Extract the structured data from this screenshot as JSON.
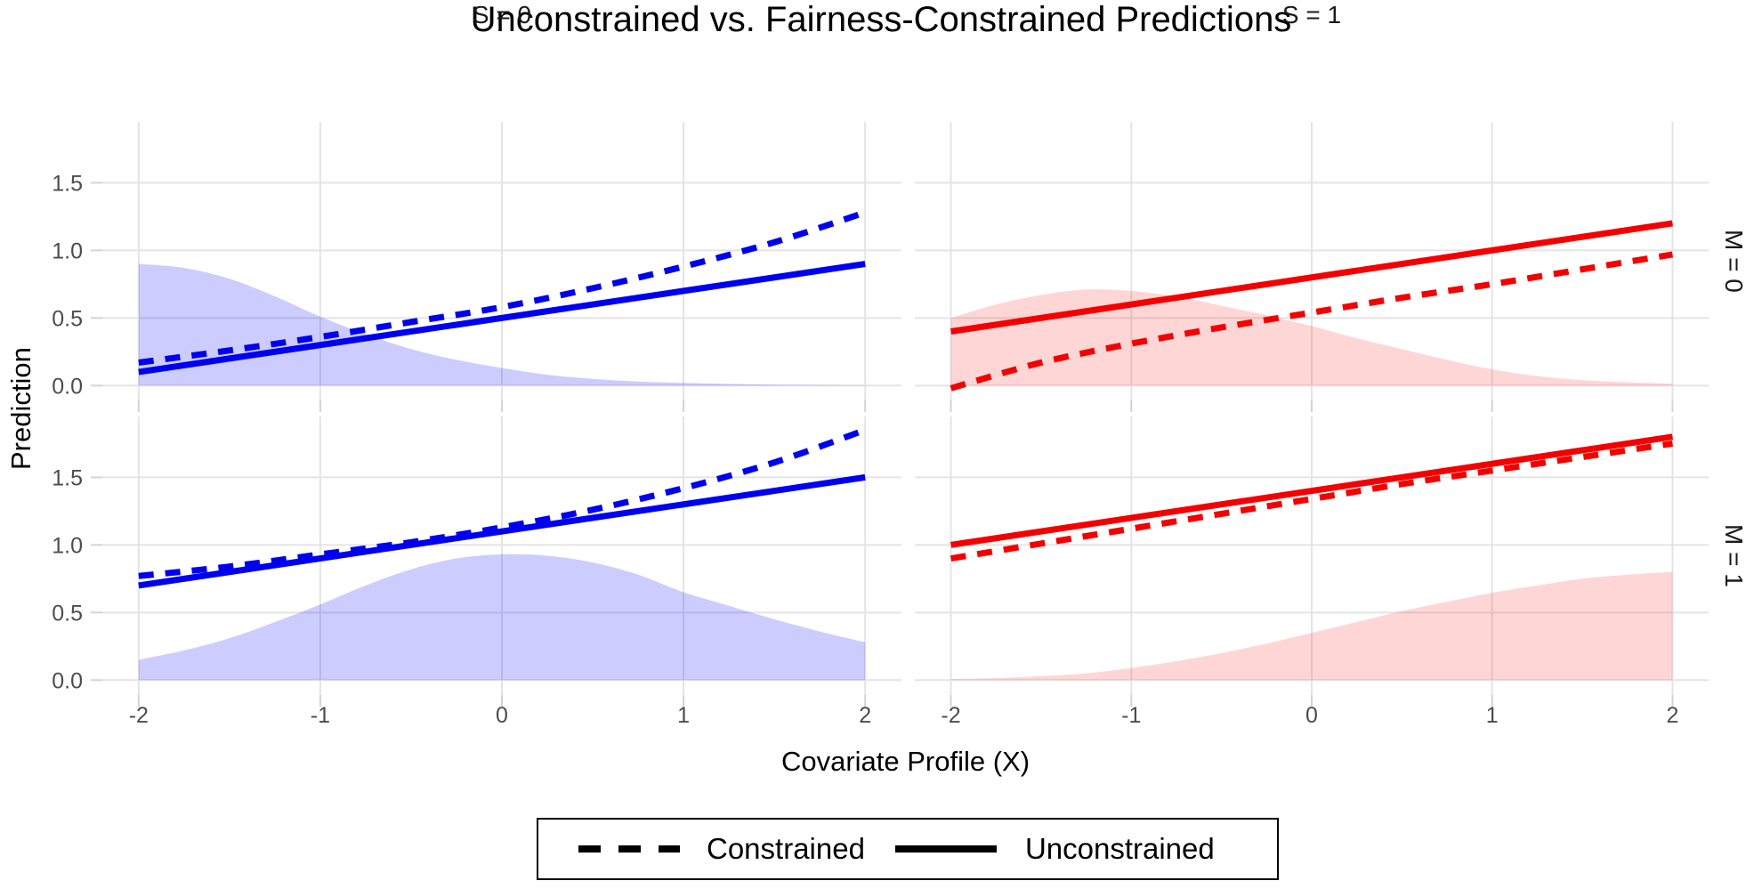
{
  "chart_data": {
    "type": "line",
    "title": "Unconstrained vs. Fairness-Constrained Predictions",
    "xlabel": "Covariate Profile (X)",
    "ylabel": "Prediction",
    "col_facets": [
      "S = 0",
      "S = 1"
    ],
    "row_facets": [
      "M = 0",
      "M = 1"
    ],
    "x_ticks": [
      -2,
      -1,
      0,
      1,
      2
    ],
    "x_tick_labels": [
      "-2",
      "-1",
      "0",
      "1",
      "2"
    ],
    "y_ticks": [
      0.0,
      0.5,
      1.0,
      1.5
    ],
    "y_tick_labels": [
      "0.0",
      "0.5",
      "1.0",
      "1.5"
    ],
    "xlim": [
      -2.2,
      2.2
    ],
    "ylim": [
      -0.11,
      1.95
    ],
    "grid": "major-only",
    "legend_position": "bottom",
    "legend": {
      "items": [
        {
          "label": "Constrained",
          "linetype": "dashed"
        },
        {
          "label": "Unconstrained",
          "linetype": "solid"
        }
      ]
    },
    "colors": {
      "blue_line": "#0000F0",
      "red_line": "#F50000",
      "blue_fill": "rgba(0,0,255,0.20)",
      "red_fill": "rgba(255,0,0,0.16)",
      "grid_line": "#E4E4E4",
      "tick_mark": "#D3D3D3",
      "tick_text": "#4D4D4D"
    },
    "panels": [
      {
        "col_facet": "S = 0",
        "row_facet": "M = 0",
        "color": "blue",
        "unconstrained": {
          "x": [
            -2,
            2
          ],
          "y": [
            0.1,
            0.9
          ]
        },
        "constrained": {
          "x": [
            -2,
            -1.5,
            -1,
            -0.5,
            0,
            0.5,
            1,
            1.5,
            2
          ],
          "y": [
            0.17,
            0.26,
            0.36,
            0.47,
            0.58,
            0.72,
            0.88,
            1.06,
            1.28
          ]
        },
        "density": {
          "x": [
            -2,
            -1.75,
            -1.5,
            -1.25,
            -1,
            -0.75,
            -0.5,
            -0.25,
            0,
            0.25,
            0.5,
            0.75,
            1,
            1.25,
            1.5,
            1.75,
            2
          ],
          "y": [
            0.9,
            0.87,
            0.79,
            0.66,
            0.51,
            0.38,
            0.27,
            0.19,
            0.13,
            0.08,
            0.05,
            0.03,
            0.02,
            0.012,
            0.007,
            0.004,
            0.002
          ]
        }
      },
      {
        "col_facet": "S = 1",
        "row_facet": "M = 0",
        "color": "red",
        "unconstrained": {
          "x": [
            -2,
            2
          ],
          "y": [
            0.4,
            1.2
          ]
        },
        "constrained": {
          "x": [
            -2,
            -1.5,
            -1,
            -0.5,
            0,
            0.5,
            1,
            1.5,
            2
          ],
          "y": [
            -0.02,
            0.17,
            0.31,
            0.43,
            0.54,
            0.65,
            0.75,
            0.86,
            0.97
          ]
        },
        "density": {
          "x": [
            -2,
            -1.75,
            -1.5,
            -1.25,
            -1,
            -0.75,
            -0.5,
            -0.25,
            0,
            0.25,
            0.5,
            0.75,
            1,
            1.25,
            1.5,
            1.75,
            2
          ],
          "y": [
            0.5,
            0.6,
            0.67,
            0.71,
            0.7,
            0.66,
            0.59,
            0.52,
            0.44,
            0.35,
            0.27,
            0.19,
            0.12,
            0.07,
            0.04,
            0.025,
            0.015
          ]
        }
      },
      {
        "col_facet": "S = 0",
        "row_facet": "M = 1",
        "color": "blue",
        "unconstrained": {
          "x": [
            -2,
            2
          ],
          "y": [
            0.7,
            1.5
          ]
        },
        "constrained": {
          "x": [
            -2,
            -1.5,
            -1,
            -0.5,
            0,
            0.5,
            1,
            1.5,
            2
          ],
          "y": [
            0.77,
            0.84,
            0.93,
            1.02,
            1.13,
            1.26,
            1.42,
            1.61,
            1.85
          ]
        },
        "density": {
          "x": [
            -2,
            -1.75,
            -1.5,
            -1.25,
            -1,
            -0.75,
            -0.5,
            -0.25,
            0,
            0.25,
            0.5,
            0.75,
            1,
            1.25,
            1.5,
            1.75,
            2
          ],
          "y": [
            0.15,
            0.22,
            0.31,
            0.43,
            0.56,
            0.7,
            0.82,
            0.9,
            0.93,
            0.92,
            0.87,
            0.78,
            0.65,
            0.55,
            0.45,
            0.36,
            0.28
          ]
        }
      },
      {
        "col_facet": "S = 1",
        "row_facet": "M = 1",
        "color": "red",
        "unconstrained": {
          "x": [
            -2,
            2
          ],
          "y": [
            1.0,
            1.8
          ]
        },
        "constrained": {
          "x": [
            -2,
            -1.5,
            -1,
            -0.5,
            0,
            0.5,
            1,
            1.5,
            2
          ],
          "y": [
            0.9,
            1.01,
            1.12,
            1.23,
            1.34,
            1.45,
            1.55,
            1.65,
            1.75
          ]
        },
        "density": {
          "x": [
            -2,
            -1.75,
            -1.5,
            -1.25,
            -1,
            -0.75,
            -0.5,
            -0.25,
            0,
            0.25,
            0.5,
            0.75,
            1,
            1.25,
            1.5,
            1.75,
            2
          ],
          "y": [
            0.008,
            0.015,
            0.03,
            0.05,
            0.09,
            0.14,
            0.2,
            0.27,
            0.35,
            0.43,
            0.51,
            0.58,
            0.645,
            0.7,
            0.75,
            0.78,
            0.8
          ]
        }
      }
    ]
  }
}
